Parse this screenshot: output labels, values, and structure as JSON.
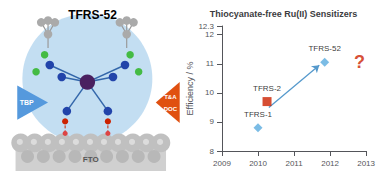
{
  "chart_data": [
    {
      "type": "diagram",
      "title": "TFRS-52",
      "annotations": [
        "FTO",
        "TBP",
        "T&A",
        "DOC"
      ]
    },
    {
      "type": "scatter",
      "title": "Thiocyanate-free Ru(II) Sensitizers",
      "ylabel": "Efficiency / %",
      "xlim": [
        2009,
        2013
      ],
      "ylim": [
        8,
        12.3
      ],
      "xticks": [
        2009,
        2010,
        2011,
        2012,
        2013
      ],
      "yticks": [
        8,
        9,
        10,
        11,
        12
      ],
      "series": [
        {
          "name": "TFRS-1",
          "x": [
            2010.0
          ],
          "values": [
            8.8
          ],
          "color": "#5aabdf",
          "marker": "diamond"
        },
        {
          "name": "TFRS-2",
          "x": [
            2010.25
          ],
          "values": [
            9.7
          ],
          "color": "#cc2200",
          "marker": "square"
        },
        {
          "name": "TFRS-52",
          "x": [
            2011.85
          ],
          "values": [
            11.05
          ],
          "color": "#5aabdf",
          "marker": "diamond"
        }
      ],
      "annotations": [
        {
          "type": "arrow",
          "x": [
            2010.3,
            2011.7
          ],
          "y": [
            9.5,
            10.95
          ],
          "color": "#5599cc"
        },
        {
          "text": "?",
          "x": 2012.82,
          "y": 11.05,
          "color": "#cc2200"
        }
      ]
    }
  ]
}
